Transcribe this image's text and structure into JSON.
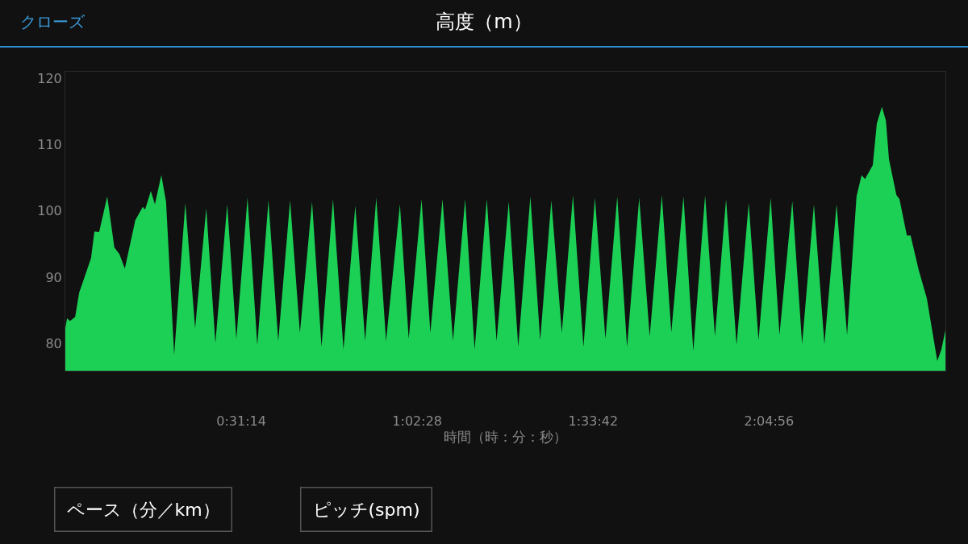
{
  "chart_data": {
    "type": "area",
    "title": "高度（m）",
    "xlabel": "時間（時：分：秒）",
    "annotations": [
      "クローズ",
      "ペース（分／km）",
      "ピッチ(spm)"
    ],
    "x": [
      0,
      0.005,
      0.014,
      0.029,
      0.041,
      0.062,
      0.076,
      0.086,
      0.1,
      0.124,
      0.145,
      0.16,
      0.176,
      0.207,
      0.229,
      0.236,
      0.253,
      0.265,
      0.284,
      0.298,
      0.322,
      0.355,
      0.384,
      0.417,
      0.444,
      0.479,
      0.506,
      0.539,
      0.568,
      0.601,
      0.63,
      0.665,
      0.694,
      0.73,
      0.758,
      0.792,
      0.823,
      0.858,
      0.887,
      0.92,
      0.949,
      0.99,
      1.016,
      1.054,
      1.08,
      1.116,
      1.147,
      1.183,
      1.211,
      1.247,
      1.276,
      1.312,
      1.34,
      1.376,
      1.405,
      1.438,
      1.469,
      1.502,
      1.533,
      1.567,
      1.598,
      1.633,
      1.662,
      1.698,
      1.729,
      1.765,
      1.793,
      1.829,
      1.858,
      1.893,
      1.922,
      1.955,
      1.986,
      2.022,
      2.051,
      2.087,
      2.113,
      2.151,
      2.18,
      2.215,
      2.246,
      2.282,
      2.313,
      2.341,
      2.356,
      2.366,
      2.389,
      2.401,
      2.416,
      2.428,
      2.437,
      2.459,
      2.468,
      2.49,
      2.501,
      2.525,
      2.549,
      2.58,
      2.592,
      2.604
    ],
    "series": [
      {
        "color": "#1ccf55",
        "values": [
          82.3,
          83.8,
          83.4,
          84.0,
          87.7,
          90.8,
          92.9,
          96.9,
          96.8,
          102.2,
          94.5,
          93.5,
          91.3,
          98.6,
          100.6,
          100.2,
          103.0,
          101.0,
          105.4,
          101.4,
          78.3,
          101.2,
          82.3,
          100.4,
          80.1,
          101.0,
          80.7,
          102.0,
          79.8,
          101.6,
          80.4,
          101.6,
          81.6,
          101.4,
          79.5,
          101.8,
          79.1,
          100.8,
          80.4,
          102.0,
          80.4,
          101.0,
          80.7,
          101.8,
          81.6,
          101.8,
          80.4,
          101.8,
          79.1,
          101.8,
          80.4,
          101.4,
          79.5,
          102.2,
          80.5,
          101.6,
          81.6,
          102.4,
          79.5,
          102.0,
          80.7,
          102.2,
          79.5,
          102.0,
          81.1,
          102.4,
          81.7,
          102.2,
          78.9,
          102.4,
          81.1,
          101.8,
          79.8,
          101.2,
          80.5,
          102.0,
          81.3,
          101.5,
          79.9,
          101.0,
          79.9,
          101.0,
          81.3,
          102.2,
          105.4,
          104.8,
          106.9,
          113.2,
          115.7,
          113.6,
          107.8,
          102.4,
          101.8,
          96.3,
          96.3,
          91.1,
          86.8,
          77.4,
          79.1,
          82.0
        ]
      }
    ],
    "xlim": [
      0,
      2.604
    ],
    "ylim": [
      75.9,
      121
    ],
    "xticks": [
      {
        "value": 0.52056,
        "label": "0:31:14"
      },
      {
        "value": 1.04111,
        "label": "1:02:28"
      },
      {
        "value": 1.56167,
        "label": "1:33:42"
      },
      {
        "value": 2.08222,
        "label": "2:04:56"
      }
    ],
    "yticks": [
      80,
      90,
      100,
      110,
      120
    ],
    "grid": false
  }
}
